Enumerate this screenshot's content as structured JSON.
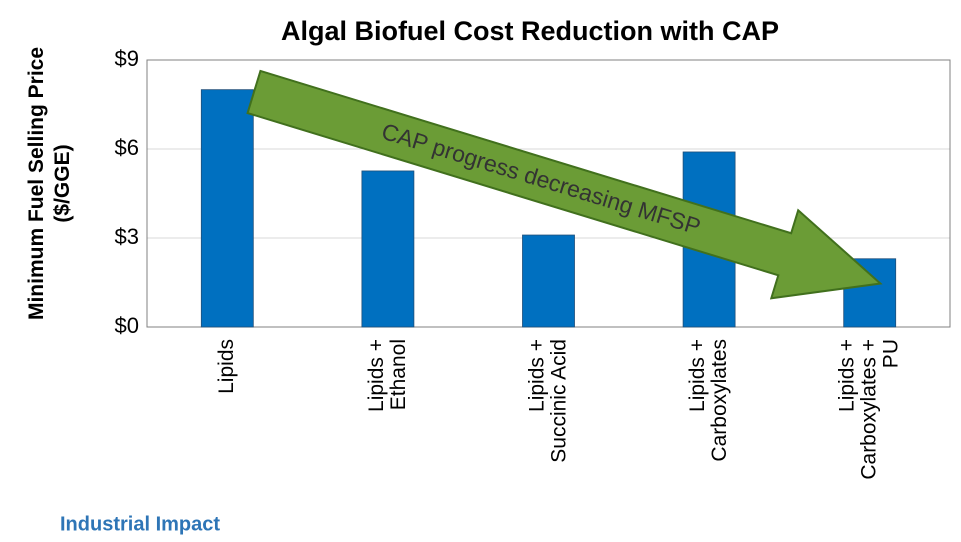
{
  "chart_data": {
    "type": "bar",
    "title": "Algal Biofuel Cost Reduction with CAP",
    "ylabel": "Minimum Fuel Selling Price\n($/GGE)",
    "categories": [
      "Lipids",
      "Lipids +\nEthanol",
      "Lipids +\nSuccinic Acid",
      "Lipids +\nCarboxylates",
      "Lipids +\nCarboxylates +\nPU"
    ],
    "values": [
      8.0,
      5.26,
      3.1,
      5.9,
      2.3
    ],
    "color": "#0070c0",
    "ylim": [
      0,
      9
    ],
    "yticks": [
      {
        "value": 0,
        "label": "$0"
      },
      {
        "value": 3,
        "label": "$3"
      },
      {
        "value": 6,
        "label": "$6"
      },
      {
        "value": 9,
        "label": "$9"
      }
    ],
    "grid": true,
    "annotation": "CAP progress decreasing MFSP",
    "footer": "Industrial Impact"
  }
}
